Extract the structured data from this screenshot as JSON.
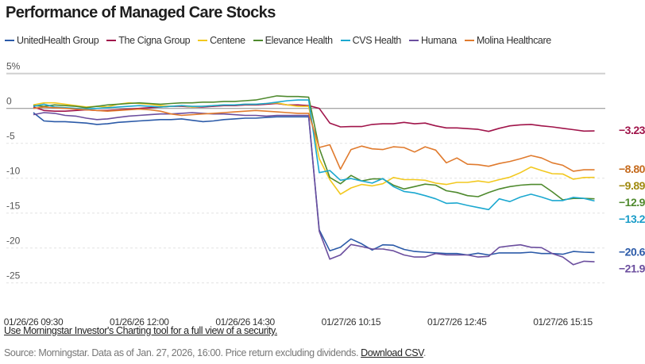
{
  "title": "Performance of Managed Care Stocks",
  "footer": {
    "link_text": "Use Morningstar Investor's Charting tool for a full view of a security.",
    "source_text": "Source: Morningstar. Data as of Jan. 27, 2026, 16:00. Price return excluding dividends.",
    "download_label": "Download CSV",
    "download_suffix": "."
  },
  "chart_data": {
    "type": "line",
    "title": "Performance of Managed Care Stocks",
    "xlabel": "",
    "ylabel": "",
    "ylim": [
      -25,
      5
    ],
    "yticks": [
      5,
      0,
      -5,
      -10,
      -15,
      -20,
      -25
    ],
    "ytick_labels": [
      "5%",
      "0",
      "-5",
      "-10",
      "-15",
      "-20",
      "-25"
    ],
    "x_interval": "15 min",
    "xtick_labels": [
      "01/26/26 09:30",
      "01/26/26 12:00",
      "01/26/26 14:30",
      "01/27/26 10:15",
      "01/27/26 12:45",
      "01/27/26 15:15"
    ],
    "grid": true,
    "legend": "top",
    "series": [
      {
        "name": "UnitedHealth Group",
        "color": "#2b5aa8",
        "end_label": "-20.65%",
        "label_color": "#2b5aa8",
        "values": [
          -0.6,
          -1.8,
          -1.9,
          -1.9,
          -2.0,
          -2.1,
          -2.3,
          -2.2,
          -2.0,
          -1.9,
          -1.8,
          -1.7,
          -1.6,
          -1.6,
          -1.5,
          -1.7,
          -1.9,
          -1.8,
          -1.6,
          -1.5,
          -1.4,
          -1.4,
          -1.3,
          -1.2,
          -1.2,
          -1.2,
          -1.2,
          -17.4,
          -20.4,
          -19.9,
          -18.7,
          -19.4,
          -20.3,
          -19.55,
          -19.6,
          -20.2,
          -20.5,
          -20.6,
          -20.7,
          -20.8,
          -20.8,
          -21.0,
          -20.75,
          -21.0,
          -20.7,
          -20.7,
          -20.7,
          -20.6,
          -20.8,
          -20.8,
          -20.9,
          -20.5,
          -20.6,
          -20.65
        ]
      },
      {
        "name": "The Cigna Group",
        "color": "#a0144a",
        "end_label": "-3.23%",
        "label_color": "#a0144a",
        "values": [
          0.2,
          -0.3,
          -0.4,
          -0.4,
          -0.3,
          -0.2,
          -0.3,
          -0.3,
          -0.2,
          -0.1,
          0.0,
          0.1,
          0.2,
          0.3,
          0.3,
          0.2,
          0.2,
          0.3,
          0.4,
          0.4,
          0.5,
          0.5,
          0.6,
          0.7,
          0.5,
          0.5,
          0.4,
          0.0,
          -2.1,
          -2.65,
          -2.6,
          -2.6,
          -2.3,
          -2.2,
          -2.2,
          -2.0,
          -2.2,
          -2.1,
          -2.5,
          -2.8,
          -2.8,
          -2.9,
          -3.0,
          -3.3,
          -2.85,
          -2.5,
          -2.35,
          -2.3,
          -2.5,
          -2.65,
          -2.85,
          -3.05,
          -3.25,
          -3.23
        ]
      },
      {
        "name": "Centene",
        "color": "#f2c81e",
        "end_label": "-9.89%",
        "label_color": "#a08a10",
        "values": [
          0.5,
          0.8,
          0.8,
          0.6,
          0.4,
          0.2,
          0.3,
          0.2,
          0.6,
          0.8,
          0.7,
          0.6,
          0.4,
          0.3,
          0.4,
          0.2,
          0.3,
          0.4,
          0.5,
          0.5,
          0.6,
          0.6,
          0.7,
          0.8,
          0.5,
          0.3,
          0.3,
          -7.2,
          -10.2,
          -12.3,
          -11.4,
          -10.9,
          -11.1,
          -10.8,
          -9.9,
          -10.2,
          -10.2,
          -10.3,
          -10.7,
          -10.9,
          -10.6,
          -10.6,
          -10.4,
          -10.6,
          -10.2,
          -9.85,
          -9.2,
          -8.4,
          -8.9,
          -9.35,
          -9.4,
          -10.15,
          -9.9,
          -9.89
        ]
      },
      {
        "name": "Elevance Health",
        "color": "#4f8a2e",
        "end_label": "-12.96%",
        "label_color": "#4f8a2e",
        "values": [
          0.4,
          0.3,
          0.5,
          0.4,
          0.3,
          0.1,
          0.3,
          0.5,
          0.6,
          0.7,
          0.8,
          0.7,
          0.6,
          0.7,
          0.8,
          0.8,
          0.9,
          0.9,
          1.0,
          1.0,
          1.1,
          1.2,
          1.5,
          1.8,
          1.7,
          1.7,
          1.6,
          -5.7,
          -9.9,
          -10.8,
          -9.6,
          -10.4,
          -10.1,
          -10.1,
          -11.0,
          -11.55,
          -11.2,
          -10.85,
          -11.0,
          -11.8,
          -12.05,
          -12.5,
          -12.65,
          -12.05,
          -11.55,
          -11.2,
          -11.0,
          -10.9,
          -10.9,
          -11.95,
          -13.1,
          -12.9,
          -12.9,
          -12.96
        ]
      },
      {
        "name": "CVS Health",
        "color": "#1ba8d0",
        "end_label": "-13.26%",
        "label_color": "#1a9cc8",
        "values": [
          0.3,
          0.6,
          0.2,
          0.1,
          0.0,
          -0.1,
          0.0,
          0.1,
          0.2,
          0.3,
          0.4,
          0.3,
          0.2,
          0.3,
          0.4,
          0.3,
          0.3,
          0.4,
          0.5,
          0.5,
          0.6,
          0.6,
          0.7,
          0.9,
          1.1,
          1.2,
          1.2,
          -9.2,
          -8.9,
          -10.3,
          -10.05,
          -10.4,
          -10.7,
          -10.05,
          -11.2,
          -11.9,
          -12.1,
          -12.5,
          -12.95,
          -13.6,
          -13.55,
          -13.9,
          -14.2,
          -14.5,
          -12.95,
          -13.35,
          -12.7,
          -12.3,
          -12.7,
          -13.2,
          -13.2,
          -12.75,
          -12.9,
          -13.26
        ]
      },
      {
        "name": "Humana",
        "color": "#6b4e9e",
        "end_label": "-21.98%",
        "label_color": "#6b4e9e",
        "values": [
          -0.9,
          -0.6,
          -0.7,
          -1.0,
          -1.1,
          -1.4,
          -1.6,
          -1.5,
          -1.3,
          -1.1,
          -1.0,
          -0.9,
          -0.8,
          -0.8,
          -0.7,
          -0.6,
          -0.7,
          -0.8,
          -0.8,
          -0.9,
          -1.0,
          -1.0,
          -1.1,
          -1.0,
          -1.0,
          -1.0,
          -1.0,
          -17.6,
          -21.6,
          -21.0,
          -19.5,
          -19.8,
          -20.15,
          -20.15,
          -20.4,
          -21.0,
          -21.3,
          -21.3,
          -20.8,
          -21.0,
          -21.0,
          -21.0,
          -21.3,
          -21.2,
          -19.9,
          -19.7,
          -19.55,
          -19.9,
          -19.95,
          -20.8,
          -21.3,
          -22.4,
          -21.9,
          -21.98
        ]
      },
      {
        "name": "Molina Healthcare",
        "color": "#e07b2e",
        "end_label": "-8.80%",
        "label_color": "#c56a1c",
        "values": [
          0.0,
          0.2,
          0.1,
          0.0,
          -0.1,
          -0.2,
          -0.3,
          -0.4,
          -0.3,
          -0.2,
          -0.1,
          -0.2,
          -0.4,
          -0.8,
          -1.0,
          -0.9,
          -0.8,
          -0.7,
          -0.6,
          -0.5,
          -0.4,
          -0.3,
          -0.4,
          -0.5,
          -0.6,
          -0.7,
          -0.7,
          -5.6,
          -5.2,
          -8.7,
          -5.9,
          -5.4,
          -5.8,
          -5.9,
          -5.5,
          -5.6,
          -6.25,
          -5.5,
          -5.98,
          -7.8,
          -7.1,
          -8.0,
          -8.07,
          -8.3,
          -7.9,
          -7.6,
          -7.2,
          -6.75,
          -7.1,
          -7.8,
          -8.15,
          -9.0,
          -8.8,
          -8.8
        ]
      }
    ]
  }
}
